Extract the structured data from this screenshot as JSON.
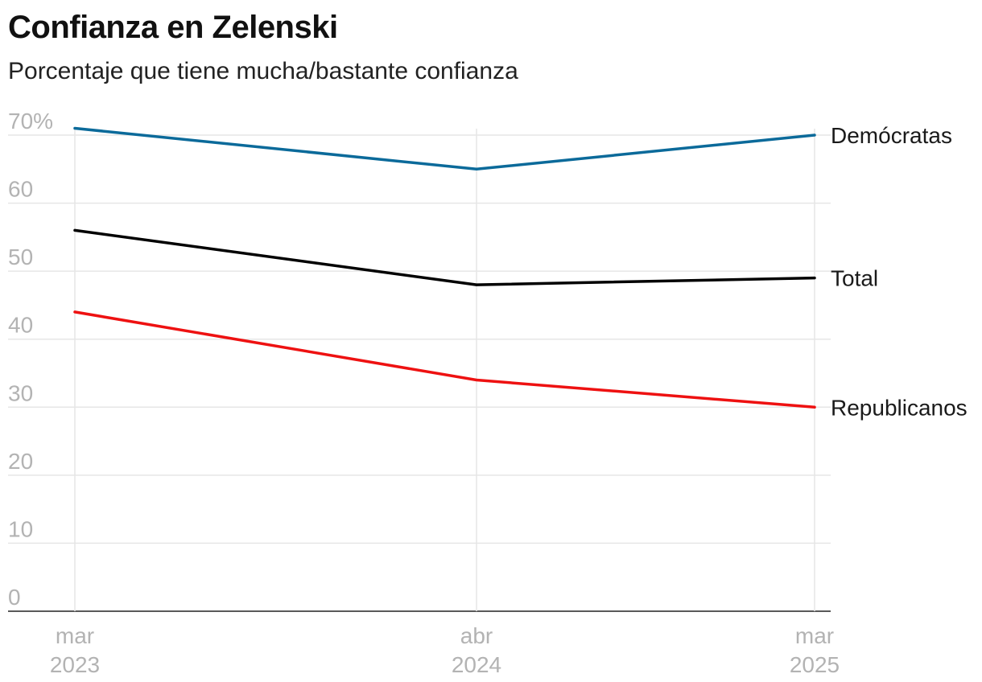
{
  "chart_data": {
    "type": "line",
    "title": "Confianza en Zelenski",
    "subtitle": "Porcentaje que tiene mucha/bastante confianza",
    "x": [
      {
        "month": "mar",
        "year": "2023",
        "date": "2023-03"
      },
      {
        "month": "abr",
        "year": "2024",
        "date": "2024-04"
      },
      {
        "month": "mar",
        "year": "2025",
        "date": "2025-03"
      }
    ],
    "y_ticks": [
      "0",
      "10",
      "20",
      "30",
      "40",
      "50",
      "60",
      "70%"
    ],
    "ylim": [
      0,
      70
    ],
    "grid": true,
    "legend": "inline-right",
    "series": [
      {
        "name": "Demócratas",
        "color": "#0b6a9a",
        "values": [
          71,
          65,
          70
        ]
      },
      {
        "name": "Total",
        "color": "#000000",
        "values": [
          56,
          48,
          49
        ]
      },
      {
        "name": "Republicanos",
        "color": "#ee1111",
        "values": [
          44,
          34,
          30
        ]
      }
    ]
  }
}
